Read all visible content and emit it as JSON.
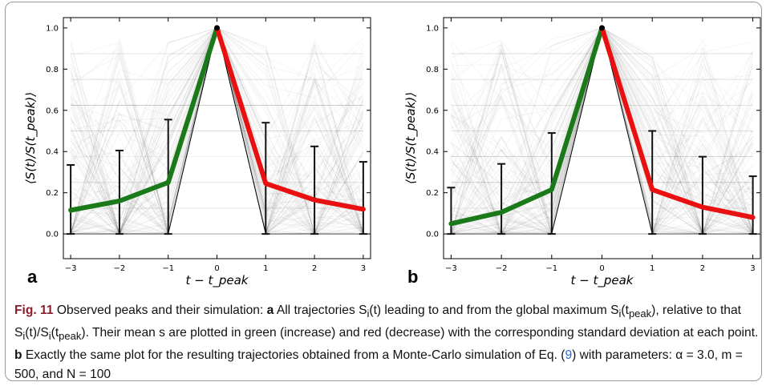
{
  "chart_data": [
    {
      "type": "line",
      "panel": "a",
      "xlabel": "t − t_peak",
      "ylabel": "⟨S(t)/S(t_peak)⟩",
      "x": [
        -3,
        -2,
        -1,
        0,
        1,
        2,
        3
      ],
      "xlim": [
        -3.15,
        3.15
      ],
      "ylim": [
        -0.12,
        1.05
      ],
      "xticks": [
        "−3",
        "−2",
        "−1",
        "0",
        "1",
        "2",
        "3"
      ],
      "yticks": [
        "0.0",
        "0.2",
        "0.4",
        "0.6",
        "0.8",
        "1.0"
      ],
      "series": [
        {
          "role": "increase",
          "color": "#1a7a1a",
          "x": [
            -3,
            -2,
            -1,
            0
          ],
          "values": [
            0.115,
            0.16,
            0.25,
            1.0
          ]
        },
        {
          "role": "decrease",
          "color": "#e81010",
          "x": [
            0,
            1,
            2,
            3
          ],
          "values": [
            1.0,
            0.245,
            0.165,
            0.12
          ]
        }
      ],
      "error_bars": [
        {
          "x": -3,
          "low": 0.0,
          "high": 0.335
        },
        {
          "x": -2,
          "low": 0.0,
          "high": 0.405
        },
        {
          "x": -1,
          "low": 0.0,
          "high": 0.555
        },
        {
          "x": 0,
          "low": 1.0,
          "high": 1.0
        },
        {
          "x": 1,
          "low": 0.0,
          "high": 0.54
        },
        {
          "x": 2,
          "low": 0.0,
          "high": 0.425
        },
        {
          "x": 3,
          "low": 0.0,
          "high": 0.35
        }
      ],
      "grid": false
    },
    {
      "type": "line",
      "panel": "b",
      "xlabel": "t − t_peak",
      "ylabel": "⟨S(t)/S(t_peak)⟩",
      "x": [
        -3,
        -2,
        -1,
        0,
        1,
        2,
        3
      ],
      "xlim": [
        -3.15,
        3.15
      ],
      "ylim": [
        -0.12,
        1.05
      ],
      "xticks": [
        "−3",
        "−2",
        "−1",
        "0",
        "1",
        "2",
        "3"
      ],
      "yticks": [
        "0.0",
        "0.2",
        "0.4",
        "0.6",
        "0.8",
        "1.0"
      ],
      "series": [
        {
          "role": "increase",
          "color": "#1a7a1a",
          "x": [
            -3,
            -2,
            -1,
            0
          ],
          "values": [
            0.05,
            0.105,
            0.215,
            1.0
          ]
        },
        {
          "role": "decrease",
          "color": "#e81010",
          "x": [
            0,
            1,
            2,
            3
          ],
          "values": [
            1.0,
            0.215,
            0.13,
            0.08
          ]
        }
      ],
      "error_bars": [
        {
          "x": -3,
          "low": 0.0,
          "high": 0.225
        },
        {
          "x": -2,
          "low": 0.0,
          "high": 0.34
        },
        {
          "x": -1,
          "low": 0.0,
          "high": 0.49
        },
        {
          "x": 0,
          "low": 1.0,
          "high": 1.0
        },
        {
          "x": 1,
          "low": 0.0,
          "high": 0.5
        },
        {
          "x": 2,
          "low": 0.0,
          "high": 0.375
        },
        {
          "x": 3,
          "low": 0.0,
          "high": 0.28
        }
      ],
      "grid": false
    }
  ],
  "panels": {
    "a": "a",
    "b": "b"
  },
  "caption": {
    "fig_label": "Fig. 11",
    "p1": "  Observed peaks and their simulation: ",
    "bold_a": "a",
    "p2": " All trajectories S",
    "p3": "(t) leading to and from the global maximum S",
    "p4": "(t",
    "p5": "), relative to that S",
    "p6": "(t)/S",
    "p7": "(t",
    "p8": "). Their mean s are plotted in green (increase) and red (decrease) with the corresponding standard deviation at each point. ",
    "bold_b": "b",
    "p9": " Exactly the same plot for the resulting trajectories obtained from a Monte-Carlo simulation of Eq. (",
    "eq_ref": "9",
    "p10": ") with parameters: α = 3.0, m = 500, and N = 100",
    "sub_i": "i",
    "sub_peak": "peak"
  },
  "colors": {
    "increase": "#1a7a1a",
    "decrease": "#e81010",
    "trajectories": "#000000",
    "fig_label": "#8b1e2b"
  }
}
